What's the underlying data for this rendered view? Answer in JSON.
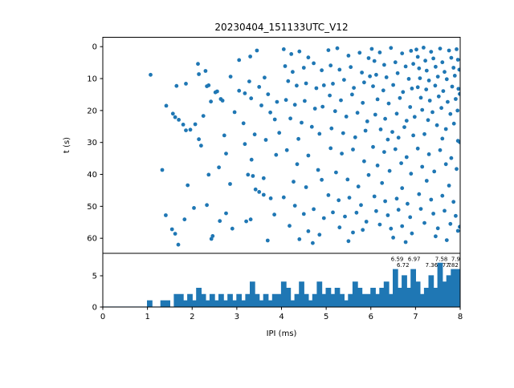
{
  "figure": {
    "title": "20230404_151133UTC_V12"
  },
  "chart_data": [
    {
      "type": "scatter",
      "title": "",
      "xlabel": "",
      "ylabel": "t (s)",
      "xlim": [
        0,
        8
      ],
      "ylim": [
        64.8,
        -2.9
      ],
      "y_axis_inverted": true,
      "yticks": [
        0,
        10,
        20,
        30,
        40,
        50,
        60
      ],
      "marker_color": "#1f77b4",
      "grid": false,
      "points": [
        [
          1.07,
          8.8
        ],
        [
          1.42,
          18.5
        ],
        [
          1.57,
          21.0
        ],
        [
          1.62,
          22.1
        ],
        [
          1.7,
          22.9
        ],
        [
          1.8,
          24.4
        ],
        [
          1.86,
          26.2
        ],
        [
          1.96,
          26.0
        ],
        [
          1.65,
          12.3
        ],
        [
          1.86,
          11.6
        ],
        [
          1.33,
          38.6
        ],
        [
          1.9,
          43.4
        ],
        [
          1.41,
          52.8
        ],
        [
          1.62,
          58.6
        ],
        [
          1.83,
          54.1
        ],
        [
          1.69,
          62.0
        ],
        [
          1.55,
          57.2
        ],
        [
          2.13,
          5.4
        ],
        [
          2.15,
          8.6
        ],
        [
          2.3,
          7.6
        ],
        [
          2.33,
          12.4
        ],
        [
          2.37,
          12.1
        ],
        [
          2.52,
          14.3
        ],
        [
          2.56,
          14.0
        ],
        [
          2.64,
          16.4
        ],
        [
          2.68,
          16.9
        ],
        [
          2.42,
          17.2
        ],
        [
          2.15,
          29.0
        ],
        [
          2.07,
          24.3
        ],
        [
          2.86,
          9.4
        ],
        [
          2.95,
          20.5
        ],
        [
          2.72,
          27.8
        ],
        [
          2.25,
          21.7
        ],
        [
          2.37,
          40.1
        ],
        [
          2.6,
          37.8
        ],
        [
          2.85,
          43.0
        ],
        [
          2.76,
          33.5
        ],
        [
          2.2,
          31.0
        ],
        [
          2.04,
          50.5
        ],
        [
          2.33,
          49.6
        ],
        [
          2.46,
          59.3
        ],
        [
          2.62,
          54.6
        ],
        [
          2.76,
          52.2
        ],
        [
          2.43,
          60.2
        ],
        [
          2.9,
          57.0
        ],
        [
          3.05,
          4.2
        ],
        [
          3.3,
          3.1
        ],
        [
          3.45,
          1.2
        ],
        [
          3.05,
          13.8
        ],
        [
          3.18,
          14.6
        ],
        [
          3.32,
          16.2
        ],
        [
          3.28,
          10.9
        ],
        [
          3.5,
          12.6
        ],
        [
          3.62,
          9.7
        ],
        [
          3.7,
          14.9
        ],
        [
          3.55,
          18.4
        ],
        [
          3.75,
          20.6
        ],
        [
          3.9,
          17.3
        ],
        [
          3.85,
          22.8
        ],
        [
          3.15,
          24.0
        ],
        [
          3.4,
          27.5
        ],
        [
          3.65,
          29.2
        ],
        [
          3.95,
          27.0
        ],
        [
          3.18,
          30.5
        ],
        [
          3.25,
          40.1
        ],
        [
          3.33,
          35.4
        ],
        [
          3.36,
          40.5
        ],
        [
          3.42,
          44.7
        ],
        [
          3.6,
          41.2
        ],
        [
          3.88,
          33.9
        ],
        [
          3.5,
          45.5
        ],
        [
          3.6,
          46.4
        ],
        [
          3.76,
          47.5
        ],
        [
          3.84,
          52.6
        ],
        [
          3.21,
          54.7
        ],
        [
          3.31,
          54.1
        ],
        [
          3.69,
          60.7
        ],
        [
          4.05,
          0.8
        ],
        [
          4.22,
          2.3
        ],
        [
          4.4,
          1.5
        ],
        [
          4.6,
          3.4
        ],
        [
          4.08,
          6.1
        ],
        [
          4.25,
          7.9
        ],
        [
          4.5,
          6.6
        ],
        [
          4.72,
          5.2
        ],
        [
          4.9,
          7.4
        ],
        [
          4.15,
          10.8
        ],
        [
          4.34,
          12.2
        ],
        [
          4.55,
          11.5
        ],
        [
          4.78,
          13.0
        ],
        [
          4.95,
          12.1
        ],
        [
          4.1,
          16.7
        ],
        [
          4.3,
          18.2
        ],
        [
          4.52,
          17.0
        ],
        [
          4.75,
          19.4
        ],
        [
          4.92,
          18.8
        ],
        [
          4.2,
          22.5
        ],
        [
          4.45,
          23.8
        ],
        [
          4.68,
          25.1
        ],
        [
          4.85,
          27.3
        ],
        [
          4.38,
          28.9
        ],
        [
          4.12,
          32.4
        ],
        [
          4.35,
          36.8
        ],
        [
          4.6,
          34.1
        ],
        [
          4.82,
          38.6
        ],
        [
          4.27,
          42.3
        ],
        [
          4.55,
          44.0
        ],
        [
          4.9,
          41.7
        ],
        [
          4.05,
          47.2
        ],
        [
          4.3,
          49.8
        ],
        [
          4.5,
          52.4
        ],
        [
          4.72,
          50.9
        ],
        [
          4.95,
          53.7
        ],
        [
          4.18,
          56.1
        ],
        [
          4.6,
          57.8
        ],
        [
          4.85,
          58.9
        ],
        [
          4.4,
          60.3
        ],
        [
          4.7,
          61.5
        ],
        [
          5.05,
          1.1
        ],
        [
          5.25,
          0.5
        ],
        [
          5.5,
          2.8
        ],
        [
          5.75,
          1.9
        ],
        [
          5.95,
          3.6
        ],
        [
          5.1,
          5.9
        ],
        [
          5.3,
          7.2
        ],
        [
          5.55,
          6.4
        ],
        [
          5.8,
          8.1
        ],
        [
          5.98,
          9.3
        ],
        [
          5.15,
          11.6
        ],
        [
          5.4,
          10.4
        ],
        [
          5.62,
          12.9
        ],
        [
          5.85,
          11.2
        ],
        [
          5.08,
          15.3
        ],
        [
          5.33,
          16.8
        ],
        [
          5.58,
          15.0
        ],
        [
          5.82,
          17.6
        ],
        [
          5.2,
          20.2
        ],
        [
          5.45,
          21.9
        ],
        [
          5.7,
          20.7
        ],
        [
          5.92,
          23.4
        ],
        [
          5.12,
          25.6
        ],
        [
          5.38,
          27.1
        ],
        [
          5.65,
          28.4
        ],
        [
          5.88,
          26.3
        ],
        [
          5.1,
          31.8
        ],
        [
          5.35,
          33.5
        ],
        [
          5.6,
          32.2
        ],
        [
          5.85,
          35.9
        ],
        [
          5.22,
          39.4
        ],
        [
          5.48,
          41.6
        ],
        [
          5.72,
          43.8
        ],
        [
          5.95,
          40.2
        ],
        [
          5.05,
          46.5
        ],
        [
          5.28,
          48.1
        ],
        [
          5.52,
          47.3
        ],
        [
          5.78,
          49.6
        ],
        [
          5.15,
          51.9
        ],
        [
          5.42,
          53.2
        ],
        [
          5.68,
          52.0
        ],
        [
          5.9,
          54.8
        ],
        [
          5.3,
          56.6
        ],
        [
          5.6,
          58.2
        ],
        [
          5.82,
          57.4
        ],
        [
          5.5,
          60.9
        ],
        [
          6.02,
          0.7
        ],
        [
          6.2,
          1.8
        ],
        [
          6.45,
          0.4
        ],
        [
          6.7,
          2.1
        ],
        [
          6.9,
          1.3
        ],
        [
          6.08,
          4.5
        ],
        [
          6.3,
          5.7
        ],
        [
          6.55,
          4.9
        ],
        [
          6.78,
          6.2
        ],
        [
          6.95,
          5.4
        ],
        [
          6.12,
          8.8
        ],
        [
          6.35,
          9.6
        ],
        [
          6.6,
          8.3
        ],
        [
          6.85,
          10.1
        ],
        [
          6.05,
          12.4
        ],
        [
          6.28,
          13.7
        ],
        [
          6.5,
          12.0
        ],
        [
          6.72,
          14.2
        ],
        [
          6.92,
          13.1
        ],
        [
          6.15,
          16.5
        ],
        [
          6.4,
          17.8
        ],
        [
          6.65,
          16.1
        ],
        [
          6.88,
          18.9
        ],
        [
          6.1,
          21.3
        ],
        [
          6.32,
          22.6
        ],
        [
          6.58,
          21.0
        ],
        [
          6.8,
          23.2
        ],
        [
          6.98,
          22.0
        ],
        [
          6.22,
          25.9
        ],
        [
          6.48,
          26.7
        ],
        [
          6.75,
          25.2
        ],
        [
          6.95,
          27.8
        ],
        [
          6.38,
          29.1
        ],
        [
          6.62,
          28.5
        ],
        [
          6.05,
          31.4
        ],
        [
          6.3,
          33.0
        ],
        [
          6.55,
          32.1
        ],
        [
          6.8,
          34.6
        ],
        [
          6.15,
          37.2
        ],
        [
          6.42,
          38.9
        ],
        [
          6.68,
          36.5
        ],
        [
          6.9,
          39.8
        ],
        [
          6.25,
          42.7
        ],
        [
          6.7,
          44.3
        ],
        [
          6.08,
          46.9
        ],
        [
          6.32,
          48.4
        ],
        [
          6.58,
          47.6
        ],
        [
          6.82,
          49.2
        ],
        [
          6.12,
          51.5
        ],
        [
          6.38,
          52.8
        ],
        [
          6.62,
          51.1
        ],
        [
          6.88,
          53.4
        ],
        [
          6.2,
          55.7
        ],
        [
          6.45,
          57.0
        ],
        [
          6.7,
          56.2
        ],
        [
          6.92,
          58.5
        ],
        [
          6.5,
          59.8
        ],
        [
          6.78,
          61.2
        ],
        [
          7.02,
          0.9
        ],
        [
          7.18,
          0.3
        ],
        [
          7.35,
          1.6
        ],
        [
          7.55,
          0.6
        ],
        [
          7.75,
          1.2
        ],
        [
          7.92,
          0.8
        ],
        [
          7.05,
          3.2
        ],
        [
          7.22,
          4.4
        ],
        [
          7.4,
          3.7
        ],
        [
          7.6,
          4.9
        ],
        [
          7.8,
          3.5
        ],
        [
          7.95,
          4.1
        ],
        [
          7.08,
          6.8
        ],
        [
          7.25,
          7.5
        ],
        [
          7.45,
          6.3
        ],
        [
          7.65,
          7.9
        ],
        [
          7.85,
          6.6
        ],
        [
          7.98,
          7.2
        ],
        [
          7.1,
          9.9
        ],
        [
          7.3,
          10.6
        ],
        [
          7.5,
          9.4
        ],
        [
          7.7,
          10.2
        ],
        [
          7.88,
          9.1
        ],
        [
          7.05,
          12.7
        ],
        [
          7.24,
          13.4
        ],
        [
          7.44,
          12.2
        ],
        [
          7.62,
          13.9
        ],
        [
          7.82,
          12.5
        ],
        [
          7.96,
          13.2
        ],
        [
          7.12,
          16.0
        ],
        [
          7.32,
          16.9
        ],
        [
          7.52,
          15.6
        ],
        [
          7.72,
          17.3
        ],
        [
          7.9,
          16.4
        ],
        [
          7.15,
          19.8
        ],
        [
          7.38,
          20.5
        ],
        [
          7.58,
          19.2
        ],
        [
          7.78,
          21.1
        ],
        [
          7.94,
          20.0
        ],
        [
          7.28,
          23.0
        ],
        [
          7.48,
          24.6
        ],
        [
          7.68,
          25.8
        ],
        [
          7.86,
          24.1
        ],
        [
          7.2,
          27.4
        ],
        [
          7.6,
          28.8
        ],
        [
          7.95,
          29.5
        ],
        [
          7.05,
          31.9
        ],
        [
          7.3,
          33.7
        ],
        [
          7.55,
          32.4
        ],
        [
          7.8,
          34.9
        ],
        [
          7.15,
          37.6
        ],
        [
          7.42,
          39.1
        ],
        [
          7.68,
          36.8
        ],
        [
          7.92,
          38.3
        ],
        [
          7.25,
          42.0
        ],
        [
          7.75,
          43.5
        ],
        [
          7.08,
          46.2
        ],
        [
          7.35,
          47.9
        ],
        [
          7.6,
          46.7
        ],
        [
          7.85,
          48.6
        ],
        [
          7.12,
          50.8
        ],
        [
          7.4,
          52.3
        ],
        [
          7.65,
          51.4
        ],
        [
          7.9,
          53.0
        ],
        [
          7.2,
          55.2
        ],
        [
          7.5,
          56.9
        ],
        [
          7.78,
          55.5
        ],
        [
          7.95,
          57.7
        ],
        [
          7.45,
          59.4
        ],
        [
          7.7,
          60.6
        ],
        [
          7.99,
          14.8
        ],
        [
          7.99,
          29.9
        ],
        [
          7.99,
          56.4
        ]
      ]
    },
    {
      "type": "bar",
      "subtype": "histogram-step",
      "title": "",
      "xlabel": "IPI (ms)",
      "ylabel": "",
      "xlim": [
        0,
        8
      ],
      "ylim": [
        0,
        8.6
      ],
      "xticks": [
        0,
        1,
        2,
        3,
        4,
        5,
        6,
        7,
        8
      ],
      "yticks": [
        0,
        5
      ],
      "color": "#1f77b4",
      "grid": false,
      "bin_start": 0,
      "bin_width": 0.1,
      "counts": [
        0,
        0,
        0,
        0,
        0,
        0,
        0,
        0,
        0,
        0,
        1,
        0,
        0,
        1,
        1,
        0,
        2,
        2,
        1,
        2,
        1,
        3,
        2,
        1,
        2,
        1,
        2,
        1,
        2,
        1,
        2,
        1,
        2,
        4,
        2,
        1,
        2,
        1,
        2,
        2,
        4,
        3,
        1,
        2,
        4,
        2,
        1,
        2,
        4,
        2,
        3,
        2,
        3,
        2,
        1,
        2,
        4,
        3,
        2,
        2,
        3,
        2,
        3,
        4,
        2,
        6,
        3,
        5,
        3,
        6,
        4,
        2,
        3,
        5,
        3,
        7,
        4,
        5,
        6,
        6
      ],
      "annotations": [
        {
          "x": 6.59,
          "label": "6.59",
          "row": 1
        },
        {
          "x": 6.97,
          "label": "6.97",
          "row": 1
        },
        {
          "x": 7.58,
          "label": "7.58",
          "row": 1
        },
        {
          "x": 7.9,
          "label": "7.9",
          "row": 1
        },
        {
          "x": 6.72,
          "label": "6.72",
          "row": 2
        },
        {
          "x": 7.36,
          "label": "7.36",
          "row": 2
        },
        {
          "x": 7.7,
          "label": "7.7",
          "row": 2
        },
        {
          "x": 7.82,
          "label": "7.82",
          "row": 2
        }
      ]
    }
  ]
}
